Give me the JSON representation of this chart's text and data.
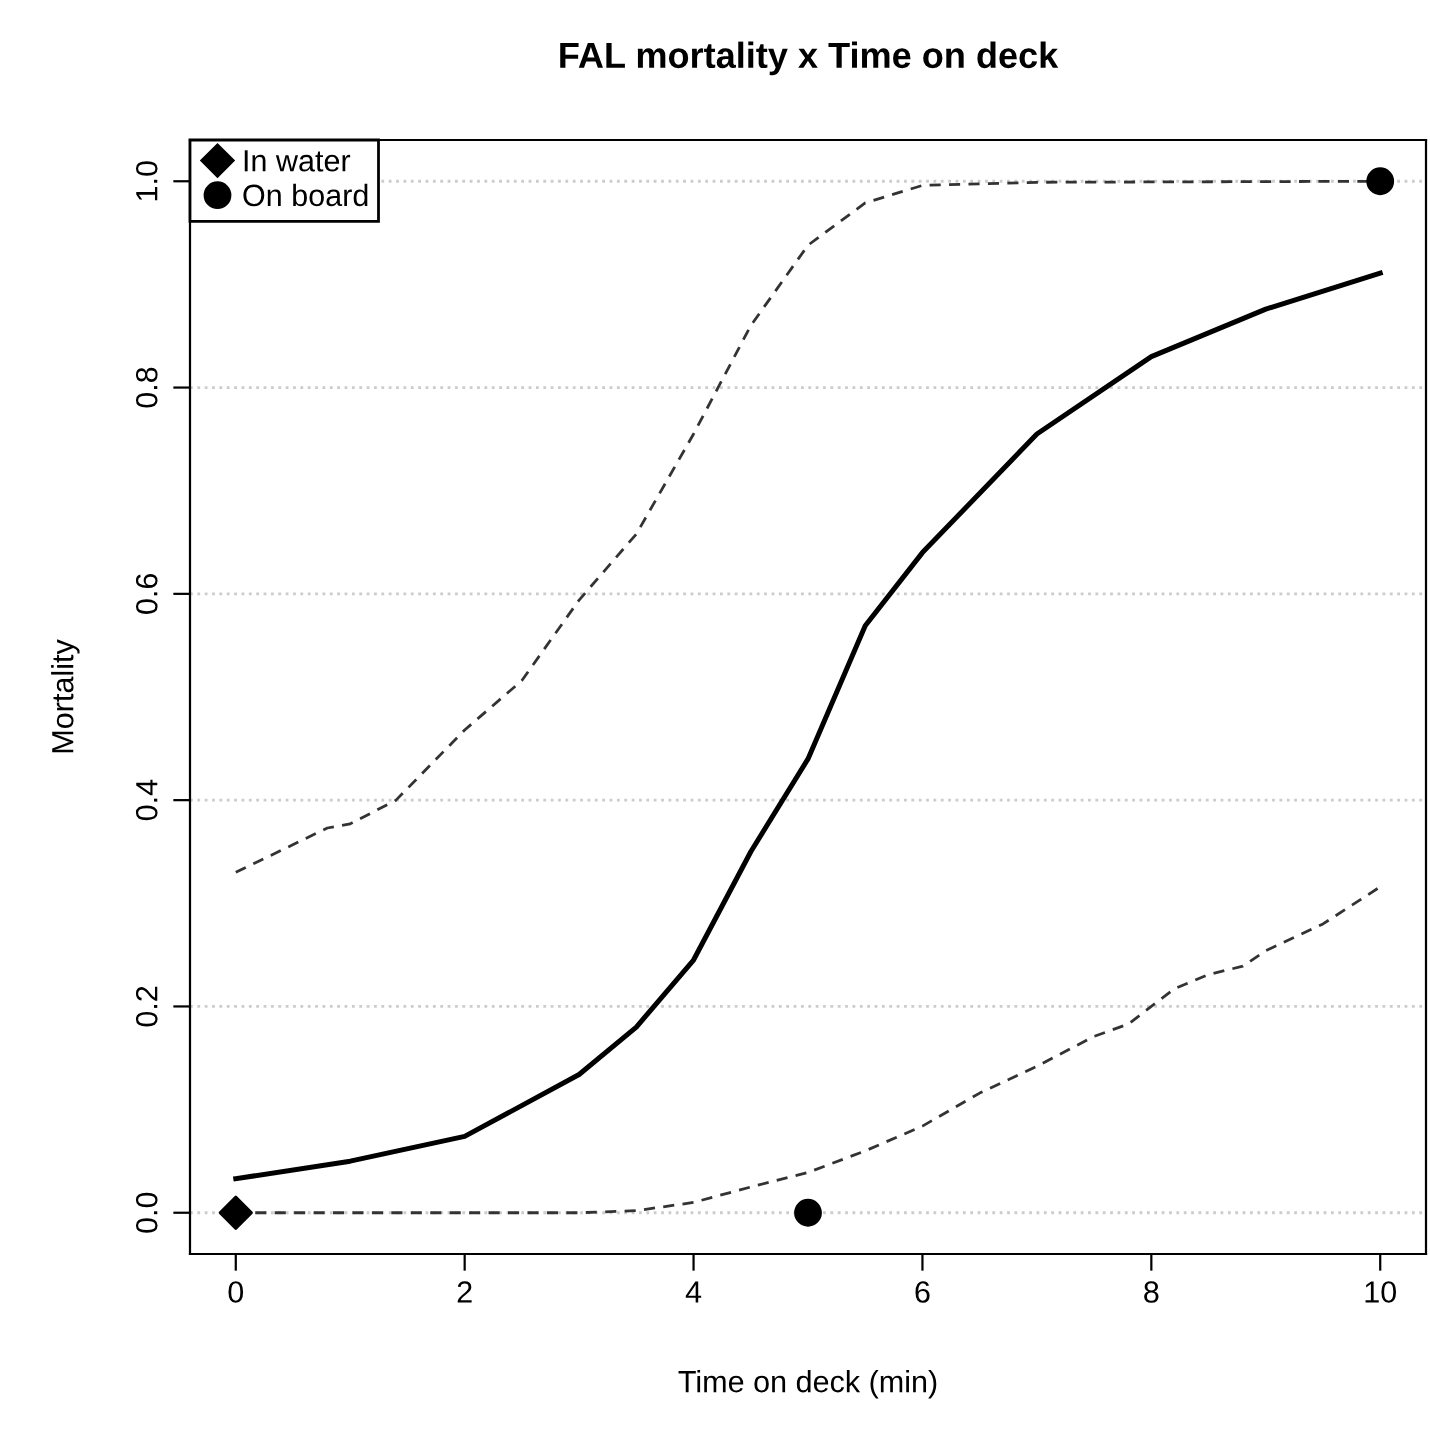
{
  "chart_data": {
    "type": "line",
    "title": "FAL mortality x Time on deck",
    "xlabel": "Time on deck (min)",
    "ylabel": "Mortality",
    "xlim": [
      -0.4,
      10.4
    ],
    "ylim": [
      -0.04,
      1.04
    ],
    "xticks": [
      0,
      2,
      4,
      6,
      8,
      10
    ],
    "yticks": [
      {
        "value": 0,
        "label": "0.0"
      },
      0.2,
      0.4,
      0.6,
      0.8,
      {
        "value": 1,
        "label": "1.0"
      }
    ],
    "grid": "y",
    "legend": "top left",
    "series": [
      {
        "color": "#000000",
        "line_style": "solid",
        "marker": "none",
        "x": [
          0,
          1,
          2,
          3,
          3.5,
          4,
          4.5,
          5,
          5.5,
          6,
          7,
          8,
          9,
          10
        ],
        "values": [
          0.033,
          0.05,
          0.074,
          0.134,
          0.18,
          0.245,
          0.35,
          0.44,
          0.569,
          0.64,
          0.755,
          0.83,
          0.876,
          0.911
        ]
      },
      {
        "color": "#333333",
        "line_style": "dashed",
        "marker": "none",
        "x": [
          0,
          0.8,
          1,
          1.4,
          2,
          2.5,
          3,
          3.5,
          4,
          4.5,
          5,
          5.5,
          6,
          7,
          10
        ],
        "values": [
          0.33,
          0.373,
          0.377,
          0.4,
          0.468,
          0.516,
          0.594,
          0.658,
          0.755,
          0.86,
          0.938,
          0.979,
          0.996,
          0.999,
          1.0
        ]
      },
      {
        "color": "#333333",
        "line_style": "dashed",
        "marker": "none",
        "x": [
          0,
          3,
          3.5,
          4,
          4.5,
          5,
          5.5,
          6,
          6.5,
          7,
          7.5,
          7.8,
          8,
          8.2,
          8.5,
          8.8,
          9,
          9.5,
          10
        ],
        "values": [
          0,
          0,
          0.002,
          0.01,
          0.025,
          0.039,
          0.06,
          0.084,
          0.116,
          0.142,
          0.171,
          0.183,
          0.2,
          0.217,
          0.231,
          0.239,
          0.254,
          0.28,
          0.316
        ]
      },
      {
        "type": "scatter",
        "name": "In water",
        "color": "#000000",
        "marker": "diamond",
        "x": [
          0
        ],
        "values": [
          0
        ]
      },
      {
        "type": "scatter",
        "name": "On board",
        "color": "#000000",
        "marker": "circle",
        "x": [
          5,
          10
        ],
        "values": [
          0,
          1
        ]
      }
    ]
  }
}
